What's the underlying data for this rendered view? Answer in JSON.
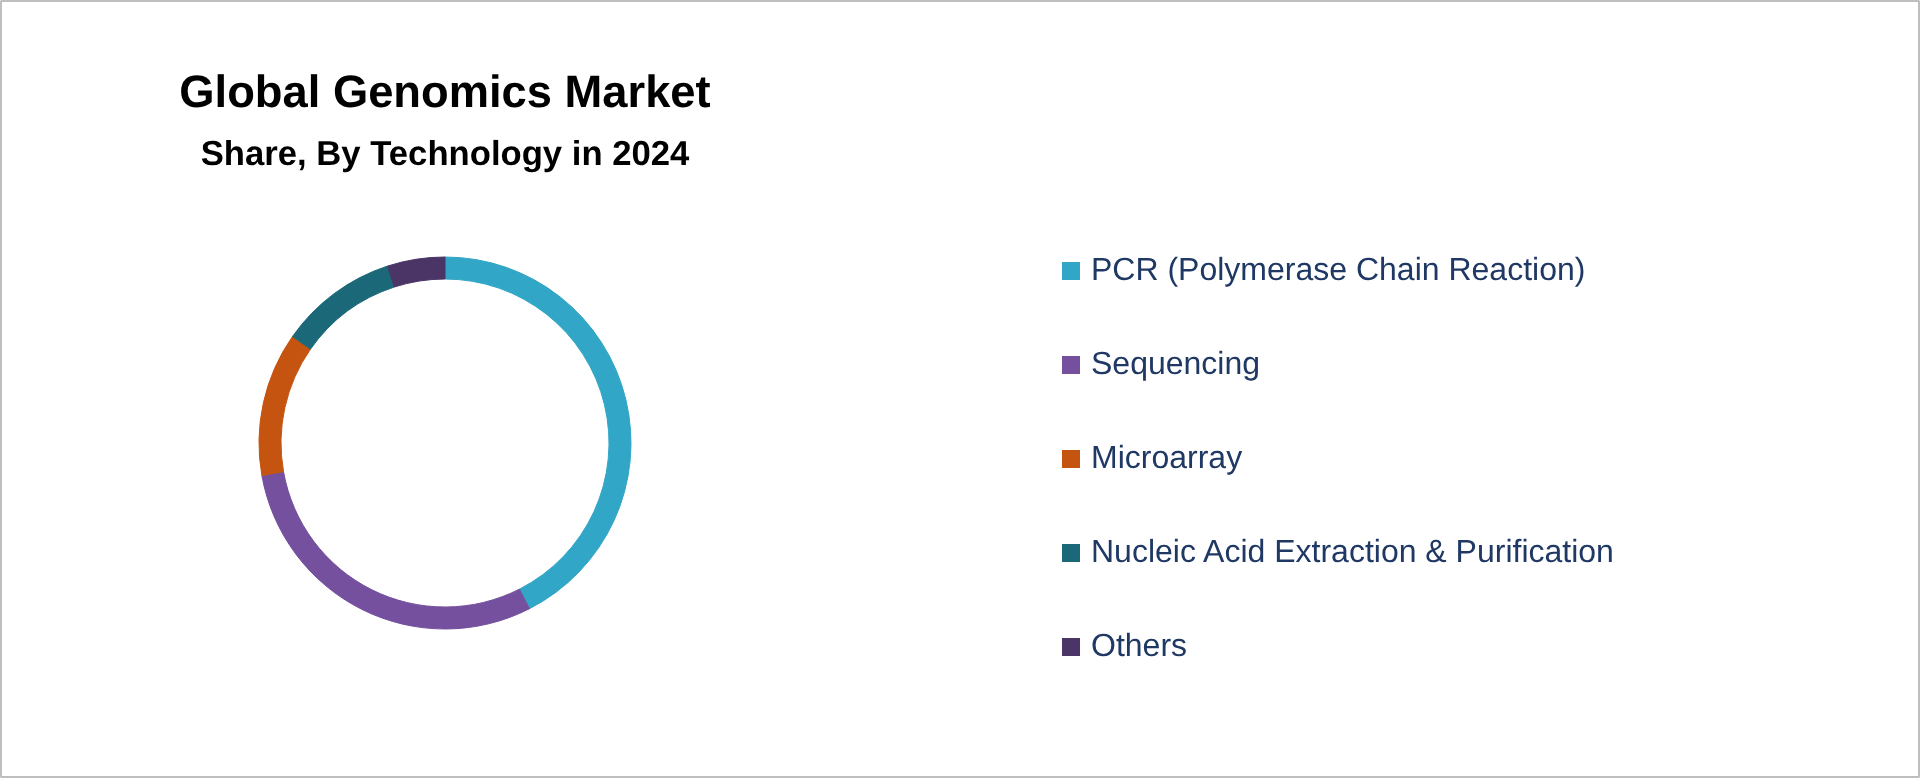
{
  "chart_data": {
    "type": "donut",
    "title": "Global Genomics Market",
    "subtitle": "Share, By Technology in 2024",
    "categories": [
      "PCR (Polymerase Chain Reaction)",
      "Sequencing",
      "Microarray",
      "Nucleic Acid Extraction & Purification",
      "Others"
    ],
    "values": [
      42.5,
      29.7,
      12.5,
      10.3,
      5.0
    ],
    "colors": [
      "#32a6c6",
      "#74509e",
      "#c55410",
      "#1b6878",
      "#4b3466"
    ],
    "legend": "right"
  }
}
